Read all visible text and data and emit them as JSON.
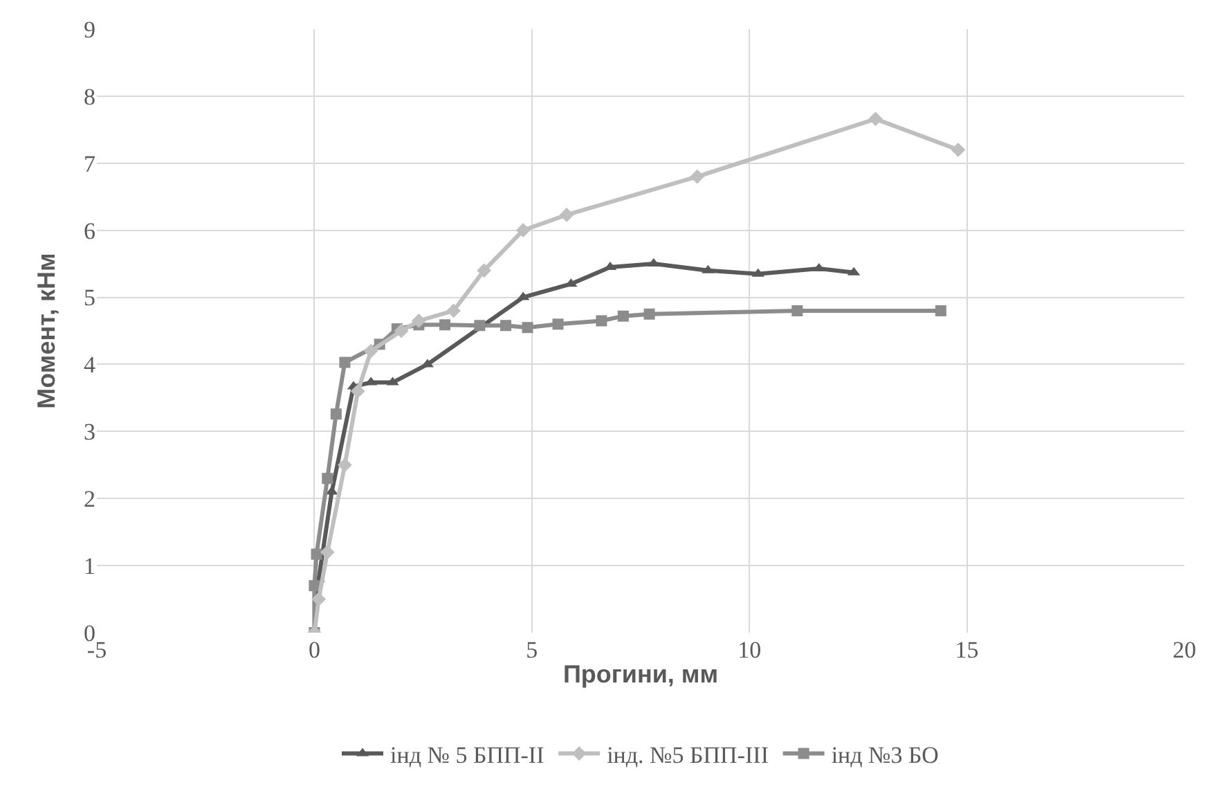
{
  "chart_data": {
    "type": "line",
    "xlabel": "Прогини, мм",
    "ylabel": "Момент, кНм",
    "xlim": [
      -5,
      20
    ],
    "xticks": [
      -5,
      0,
      5,
      10,
      15,
      20
    ],
    "ylim": [
      0,
      9
    ],
    "yticks": [
      0,
      1,
      2,
      3,
      4,
      5,
      6,
      7,
      8,
      9
    ],
    "grid": true,
    "legend": "bottom",
    "line_style": "solid",
    "series": [
      {
        "name": "інд № 5 БПП-ІІ",
        "color": "#595959",
        "marker": "triangle",
        "x": [
          0,
          0.1,
          0.4,
          0.9,
          1.3,
          1.8,
          2.6,
          4.8,
          5.9,
          6.8,
          7.8,
          9.05,
          10.2,
          11.6,
          12.4
        ],
        "values": [
          0,
          0.8,
          2.1,
          3.67,
          3.73,
          3.73,
          4.0,
          5.0,
          5.2,
          5.45,
          5.5,
          5.4,
          5.35,
          5.43,
          5.37
        ]
      },
      {
        "name": "інд. №5 БПП-ІІІ",
        "color": "#bfbfbf",
        "marker": "diamond",
        "x": [
          0,
          0.1,
          0.3,
          0.7,
          1.0,
          1.3,
          2.0,
          2.4,
          3.2,
          3.9,
          4.8,
          5.8,
          8.8,
          12.9,
          14.8
        ],
        "values": [
          0,
          0.5,
          1.2,
          2.5,
          3.6,
          4.2,
          4.5,
          4.65,
          4.8,
          5.4,
          6.0,
          6.23,
          6.8,
          7.66,
          7.2
        ]
      },
      {
        "name": "інд №3 БО",
        "color": "#8c8c8c",
        "marker": "square",
        "x": [
          0,
          0,
          0.05,
          0.3,
          0.5,
          0.7,
          1.5,
          1.9,
          2.4,
          3.0,
          3.8,
          4.4,
          4.9,
          5.6,
          6.6,
          7.1,
          7.7,
          11.1,
          14.4
        ],
        "values": [
          0,
          0.7,
          1.17,
          2.3,
          3.26,
          4.03,
          4.3,
          4.53,
          4.59,
          4.59,
          4.58,
          4.58,
          4.55,
          4.6,
          4.65,
          4.72,
          4.75,
          4.8,
          4.8
        ]
      }
    ]
  }
}
